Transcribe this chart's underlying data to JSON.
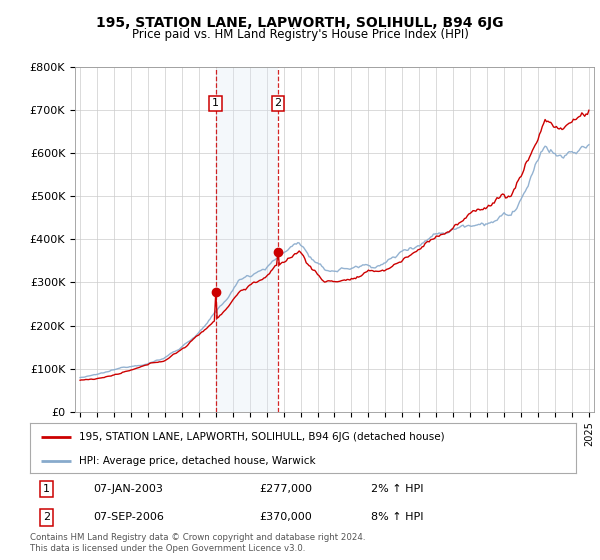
{
  "title": "195, STATION LANE, LAPWORTH, SOLIHULL, B94 6JG",
  "subtitle": "Price paid vs. HM Land Registry's House Price Index (HPI)",
  "ylim": [
    0,
    800000
  ],
  "yticks": [
    0,
    100000,
    200000,
    300000,
    400000,
    500000,
    600000,
    700000,
    800000
  ],
  "ytick_labels": [
    "£0",
    "£100K",
    "£200K",
    "£300K",
    "£400K",
    "£500K",
    "£600K",
    "£700K",
    "£800K"
  ],
  "xlim_start": 1994.7,
  "xlim_end": 2025.3,
  "line1_color": "#cc0000",
  "line2_color": "#88aacc",
  "sale1_date": 2003.04,
  "sale1_price": 277000,
  "sale2_date": 2006.67,
  "sale2_price": 370000,
  "legend_line1": "195, STATION LANE, LAPWORTH, SOLIHULL, B94 6JG (detached house)",
  "legend_line2": "HPI: Average price, detached house, Warwick",
  "table_row1": [
    "1",
    "07-JAN-2003",
    "£277,000",
    "2% ↑ HPI"
  ],
  "table_row2": [
    "2",
    "07-SEP-2006",
    "£370,000",
    "8% ↑ HPI"
  ],
  "footer": "Contains HM Land Registry data © Crown copyright and database right 2024.\nThis data is licensed under the Open Government Licence v3.0.",
  "bg_color": "#ffffff",
  "grid_color": "#cccccc",
  "shade_color": "#dde8f5"
}
